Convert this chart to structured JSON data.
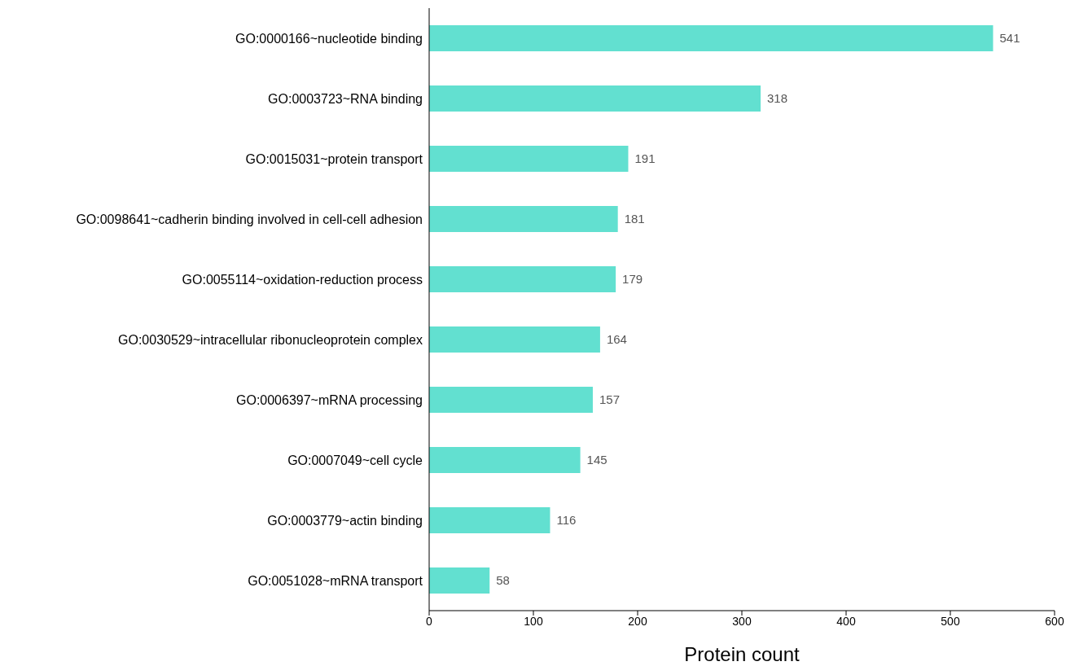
{
  "chart_data": {
    "type": "bar",
    "orientation": "horizontal",
    "xlabel": "Protein count",
    "categories": [
      "GO:0000166~nucleotide binding",
      "GO:0003723~RNA binding",
      "GO:0015031~protein transport",
      "GO:0098641~cadherin binding involved in cell-cell adhesion",
      "GO:0055114~oxidation-reduction process",
      "GO:0030529~intracellular ribonucleoprotein complex",
      "GO:0006397~mRNA processing",
      "GO:0007049~cell cycle",
      "GO:0003779~actin binding",
      "GO:0051028~mRNA transport"
    ],
    "values": [
      541,
      318,
      191,
      181,
      179,
      164,
      157,
      145,
      116,
      58
    ],
    "color": "#62e0d0",
    "xlim": [
      0,
      600
    ],
    "xticks": [
      0,
      100,
      200,
      300,
      400,
      500,
      600
    ],
    "data_labels": true,
    "grid": false,
    "legend": false
  }
}
